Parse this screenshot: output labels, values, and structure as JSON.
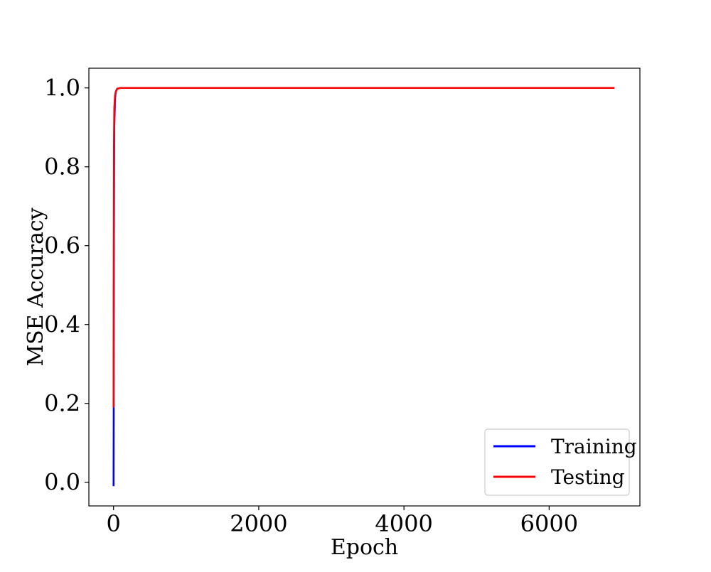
{
  "chart_data": {
    "type": "line",
    "title": "",
    "xlabel": "Epoch",
    "ylabel": "MSE Accuracy",
    "xlim": [
      -340,
      7250
    ],
    "ylim": [
      -0.06,
      1.05
    ],
    "xticks": [
      0,
      2000,
      4000,
      6000
    ],
    "xtick_labels": [
      "0",
      "2000",
      "4000",
      "6000"
    ],
    "yticks": [
      0.0,
      0.2,
      0.4,
      0.6,
      0.8,
      1.0
    ],
    "ytick_labels": [
      "0.0",
      "0.2",
      "0.4",
      "0.6",
      "0.8",
      "1.0"
    ],
    "grid": false,
    "legend_position": "bottom-right",
    "series": [
      {
        "name": "Training",
        "color": "#0000ff",
        "x": [
          0,
          2,
          5,
          10,
          20,
          30,
          50,
          100,
          300,
          600,
          1000,
          3000,
          5000,
          6900
        ],
        "y": [
          -0.01,
          0.17,
          0.6,
          0.9,
          0.97,
          0.99,
          0.998,
          1.0,
          1.0,
          1.0,
          1.0,
          1.0,
          1.0,
          1.0
        ]
      },
      {
        "name": "Testing",
        "color": "#ff0000",
        "x": [
          0,
          2,
          5,
          10,
          20,
          30,
          50,
          100,
          300,
          600,
          1000,
          3000,
          5000,
          6900
        ],
        "y": [
          0.19,
          0.5,
          0.85,
          0.95,
          0.98,
          0.99,
          0.998,
          1.0,
          1.0,
          1.0,
          1.0,
          1.0,
          1.0,
          1.0
        ]
      }
    ]
  }
}
